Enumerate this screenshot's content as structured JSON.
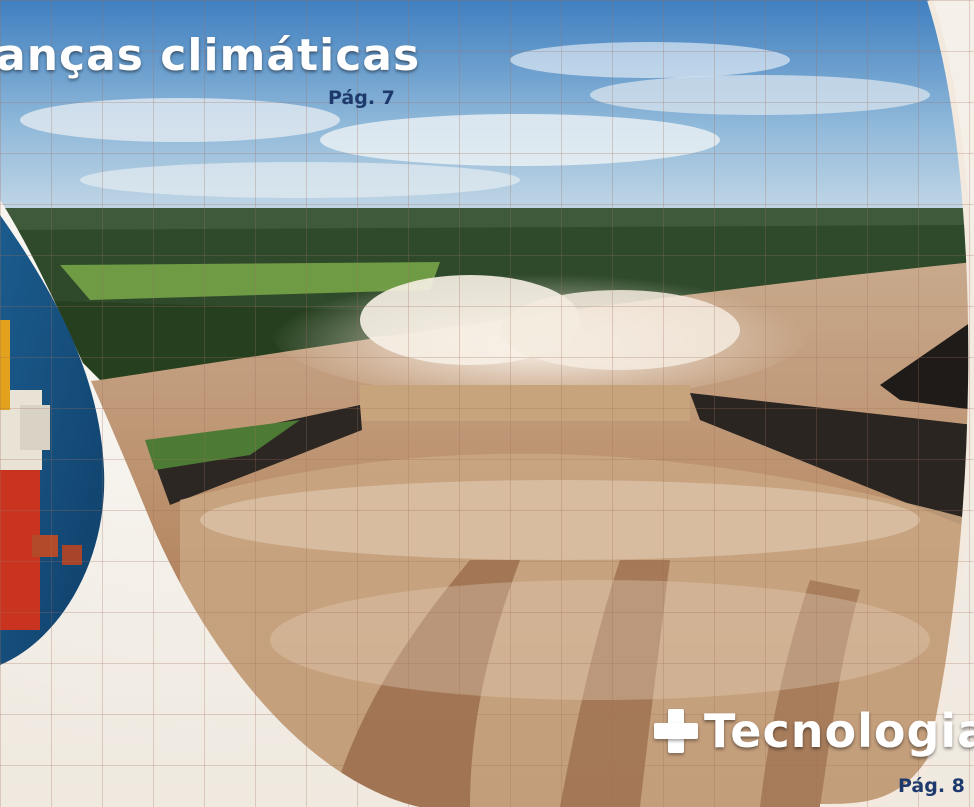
{
  "headline": {
    "title": "anças climáticas",
    "page_ref": "Pág. 7"
  },
  "feature": {
    "label": "Tecnologia",
    "page_ref": "Pág. 8",
    "icon": "plus-icon"
  },
  "colors": {
    "page_ref": "#1e3a6d",
    "overlay_text": "#ffffff",
    "paper": "#f3efe8"
  }
}
